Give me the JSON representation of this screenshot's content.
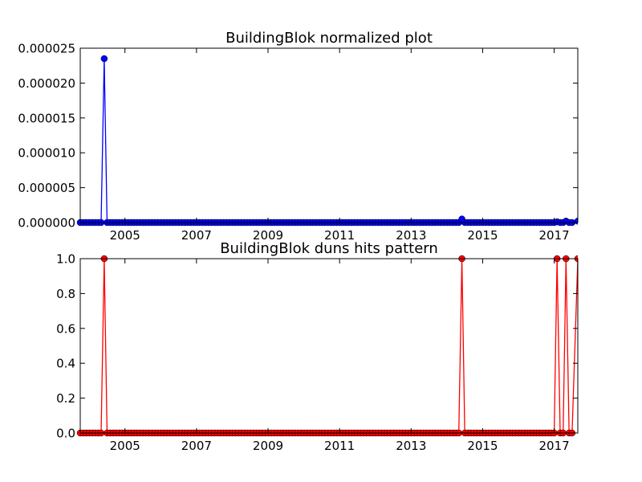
{
  "chart_data": [
    {
      "type": "line",
      "title": "BuildingBlok normalized plot",
      "xlabel": "",
      "ylabel": "",
      "x_ticks": [
        "2005",
        "2007",
        "2009",
        "2011",
        "2013",
        "2015",
        "2017"
      ],
      "y_ticks": [
        "0.000000",
        "0.000005",
        "0.000010",
        "0.000015",
        "0.000020",
        "0.000025"
      ],
      "xlim": [
        2003.75,
        2017.66
      ],
      "ylim": [
        0,
        2.5e-05
      ],
      "grid": false,
      "series": [
        {
          "color": "#0000ff",
          "baseline": 0,
          "x_start": 2003.75,
          "x_end": 2017.66,
          "step_months": 1,
          "points": [
            {
              "x": 2004.42,
              "y": 2.35e-05
            },
            {
              "x": 2014.42,
              "y": 5e-07
            },
            {
              "x": 2017.08,
              "y": 1e-07
            },
            {
              "x": 2017.33,
              "y": 2e-07
            },
            {
              "x": 2017.66,
              "y": 2e-07
            }
          ]
        }
      ]
    },
    {
      "type": "line",
      "title": "BuildingBlok duns hits pattern",
      "xlabel": "",
      "ylabel": "",
      "x_ticks": [
        "2005",
        "2007",
        "2009",
        "2011",
        "2013",
        "2015",
        "2017"
      ],
      "y_ticks": [
        "0.0",
        "0.2",
        "0.4",
        "0.6",
        "0.8",
        "1.0"
      ],
      "xlim": [
        2003.75,
        2017.66
      ],
      "ylim": [
        0,
        1
      ],
      "grid": false,
      "series": [
        {
          "color": "#ff0000",
          "baseline": 0,
          "x_start": 2003.75,
          "x_end": 2017.66,
          "step_months": 1,
          "points": [
            {
              "x": 2004.42,
              "y": 1
            },
            {
              "x": 2014.42,
              "y": 1
            },
            {
              "x": 2017.08,
              "y": 1
            },
            {
              "x": 2017.33,
              "y": 1
            },
            {
              "x": 2017.66,
              "y": 1
            }
          ]
        }
      ]
    }
  ]
}
